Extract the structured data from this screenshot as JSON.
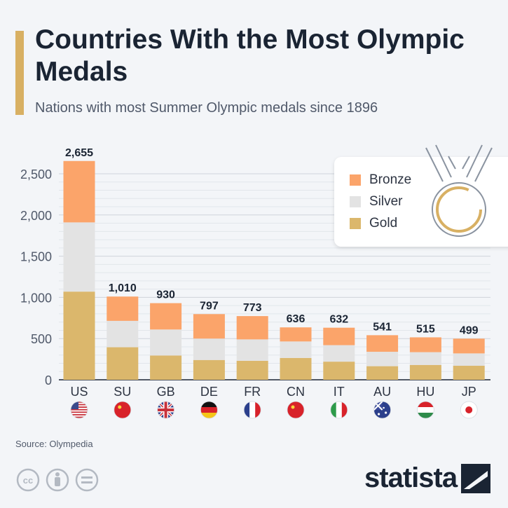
{
  "header": {
    "title": "Countries With the Most Olympic Medals",
    "subtitle": "Nations with most Summer Olympic medals since 1896"
  },
  "footer": {
    "source": "Source: Olympedia",
    "brand": "statista"
  },
  "colors": {
    "gold": "#dbb76c",
    "silver": "#e3e3e3",
    "bronze": "#fba46a",
    "accent": "#d8b063",
    "text": "#1a2433"
  },
  "icons": [
    "medal-icon",
    "cc-icon",
    "attribution-icon",
    "no-derivatives-icon",
    "statista-logo-icon"
  ],
  "chart_data": {
    "type": "bar",
    "stacked": true,
    "categories": [
      "US",
      "SU",
      "GB",
      "DE",
      "FR",
      "CN",
      "IT",
      "AU",
      "HU",
      "JP"
    ],
    "totals": [
      "2,655",
      "1,010",
      "930",
      "797",
      "773",
      "636",
      "632",
      "541",
      "515",
      "499"
    ],
    "series": [
      {
        "name": "Gold",
        "values": [
          1070,
          395,
          295,
          240,
          230,
          265,
          220,
          165,
          180,
          170
        ]
      },
      {
        "name": "Silver",
        "values": [
          840,
          320,
          315,
          260,
          260,
          200,
          200,
          175,
          155,
          150
        ]
      },
      {
        "name": "Bronze",
        "values": [
          745,
          295,
          320,
          297,
          283,
          171,
          212,
          201,
          180,
          179
        ]
      }
    ],
    "legend": [
      "Bronze",
      "Silver",
      "Gold"
    ],
    "legend_position": "top-right",
    "yticks": [
      "0",
      "500",
      "1,000",
      "1,500",
      "2,000",
      "2,500"
    ],
    "ytick_values": [
      0,
      500,
      1000,
      1500,
      2000,
      2500
    ],
    "ylim": [
      0,
      2700
    ],
    "grid": true,
    "flags": [
      "us-flag-icon",
      "su-flag-icon",
      "gb-flag-icon",
      "de-flag-icon",
      "fr-flag-icon",
      "cn-flag-icon",
      "it-flag-icon",
      "au-flag-icon",
      "hu-flag-icon",
      "jp-flag-icon"
    ]
  }
}
